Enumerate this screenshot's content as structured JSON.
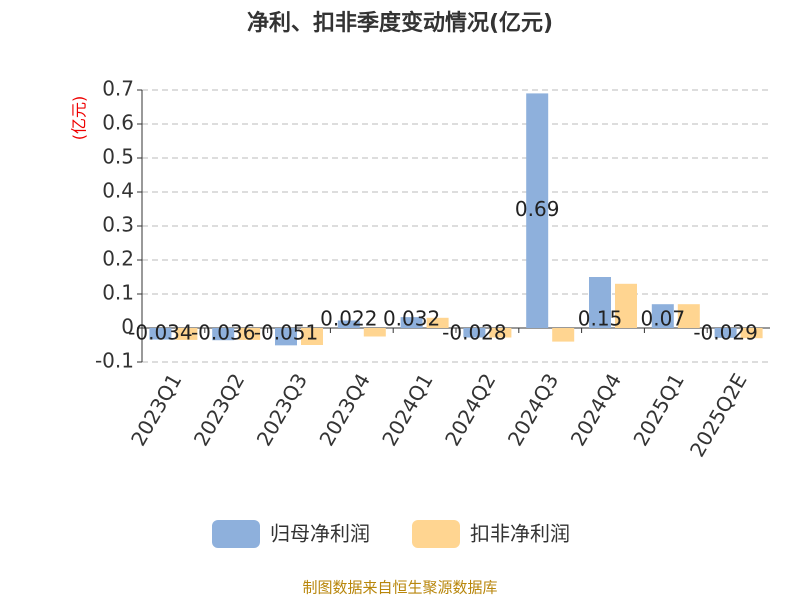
{
  "chart_data": {
    "type": "bar",
    "title": "净利、扣非季度变动情况(亿元)",
    "y_label": "(亿元)",
    "source": "制图数据来自恒生聚源数据库",
    "categories": [
      "2023Q1",
      "2023Q2",
      "2023Q3",
      "2023Q4",
      "2024Q1",
      "2024Q2",
      "2024Q3",
      "2024Q4",
      "2025Q1",
      "2025Q2E"
    ],
    "series": [
      {
        "name": "归母净利润",
        "color": "#8eb0dc",
        "values": [
          -0.034,
          -0.036,
          -0.051,
          0.022,
          0.032,
          -0.028,
          0.69,
          0.15,
          0.07,
          -0.029
        ]
      },
      {
        "name": "扣非净利润",
        "color": "#ffd591",
        "values": [
          -0.035,
          -0.035,
          -0.05,
          -0.025,
          0.03,
          -0.028,
          -0.04,
          0.13,
          0.07,
          -0.03
        ]
      }
    ],
    "ylim": [
      -0.1,
      0.7
    ],
    "yticks": [
      -0.1,
      0,
      0.1,
      0.2,
      0.3,
      0.4,
      0.5,
      0.6,
      0.7
    ],
    "grid": true
  }
}
